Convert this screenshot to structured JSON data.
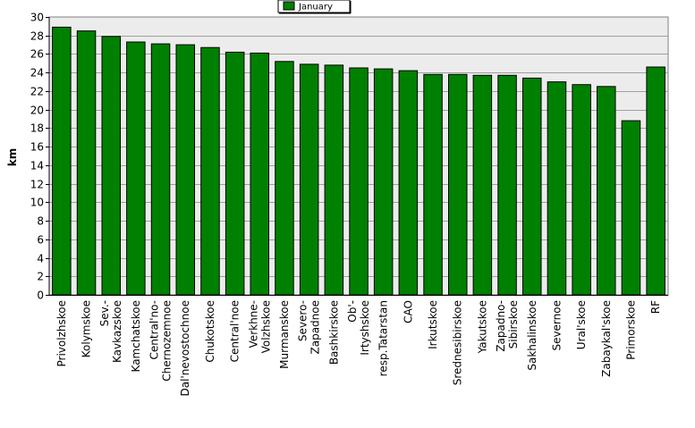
{
  "chart_data": {
    "type": "bar",
    "ylabel": "km",
    "ylim": [
      0,
      30
    ],
    "y_ticks": [
      0,
      2,
      4,
      6,
      8,
      10,
      12,
      14,
      16,
      18,
      20,
      22,
      24,
      26,
      28,
      30
    ],
    "grid": true,
    "legend_position": "top-center",
    "categories": [
      [
        "Privolzhskoe"
      ],
      [
        "Kolymskoe"
      ],
      [
        "Sev.-",
        "Kavkazskoe"
      ],
      [
        "Kamchatskoe"
      ],
      [
        "Central'no-",
        "Chernozemnoe"
      ],
      [
        "Dal'nevostochnoe"
      ],
      [
        "Chukotskoe"
      ],
      [
        "Central'noe"
      ],
      [
        "Verkhne-",
        "Volzhskoe"
      ],
      [
        "Murmanskoe"
      ],
      [
        "Severo-",
        "Zapadnoe"
      ],
      [
        "Bashkirskoe"
      ],
      [
        "Ob'-",
        "Irtyshskoe"
      ],
      [
        "resp.Tatarstan"
      ],
      [
        "CAO"
      ],
      [
        "Irkutskoe"
      ],
      [
        "Srednesibirskoe"
      ],
      [
        "Yakutskoe"
      ],
      [
        "Zapadno-",
        "Sibirskoe"
      ],
      [
        "Sakhalinskoe"
      ],
      [
        "Severnoe"
      ],
      [
        "Ural'skoe"
      ],
      [
        "Zabaykal'skoe"
      ],
      [
        "Primorskoe"
      ],
      [
        "RF"
      ]
    ],
    "series": [
      {
        "name": "January",
        "color": "#008000",
        "values": [
          28.9,
          28.5,
          27.9,
          27.3,
          27.1,
          27.0,
          26.7,
          26.2,
          26.1,
          25.2,
          24.9,
          24.8,
          24.5,
          24.4,
          24.2,
          23.8,
          23.8,
          23.7,
          23.7,
          23.4,
          23.0,
          22.7,
          22.5,
          18.8,
          24.6
        ]
      }
    ]
  }
}
